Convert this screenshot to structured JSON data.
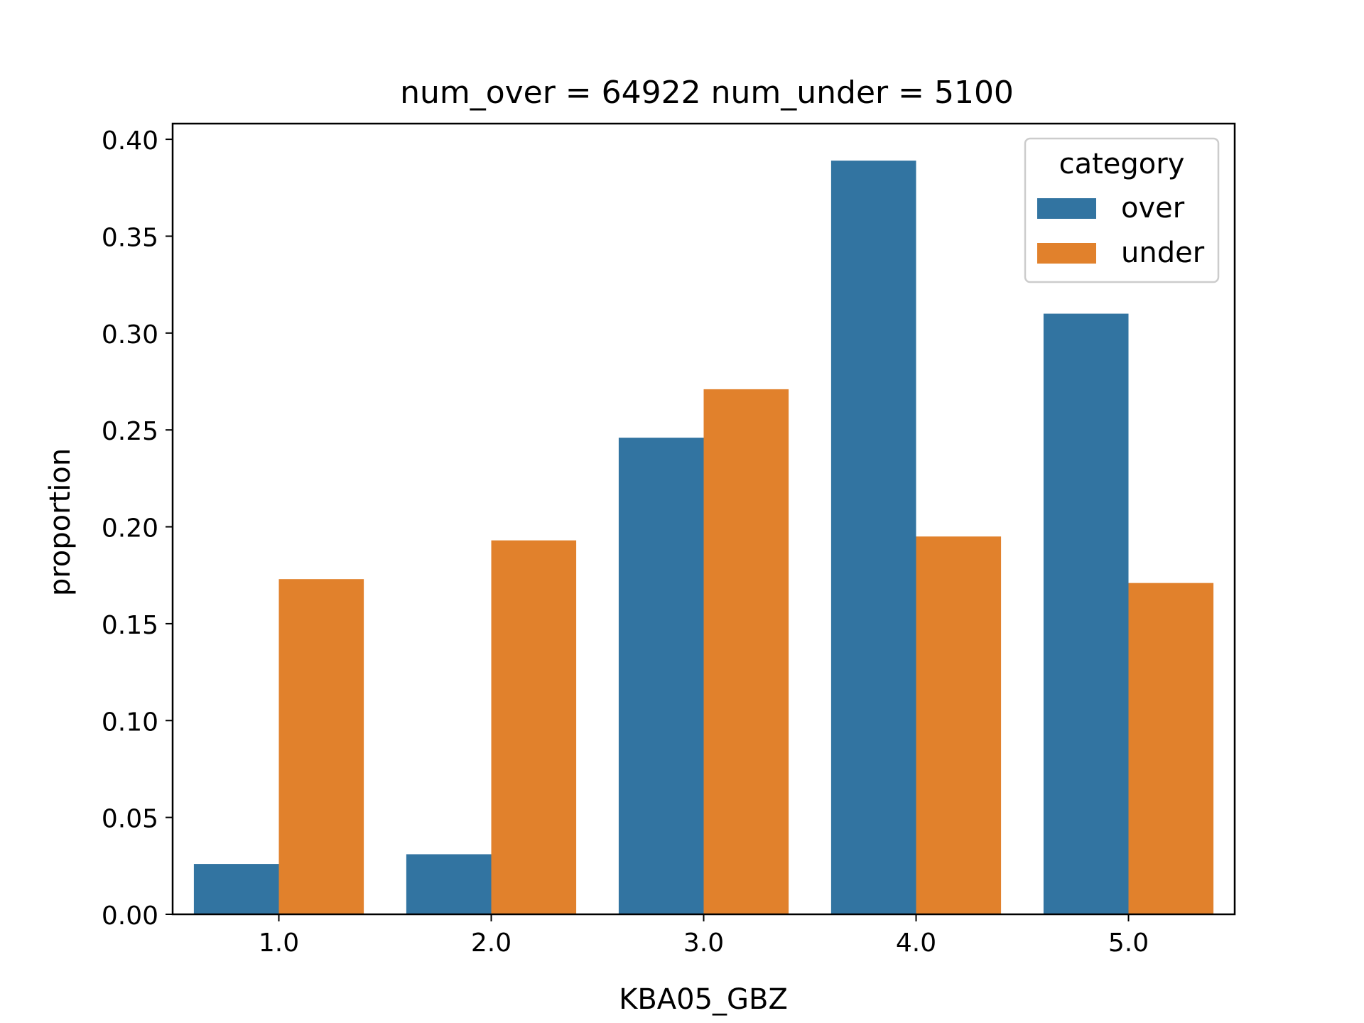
{
  "chart_data": {
    "type": "bar",
    "title": "num_over = 64922  num_under = 5100",
    "xlabel": "KBA05_GBZ",
    "ylabel": "proportion",
    "categories": [
      "1.0",
      "2.0",
      "3.0",
      "4.0",
      "5.0"
    ],
    "ylim": [
      0,
      0.4081
    ],
    "yticks": [
      "0.00",
      "0.05",
      "0.10",
      "0.15",
      "0.20",
      "0.25",
      "0.30",
      "0.35",
      "0.40"
    ],
    "grid": false,
    "legend": {
      "title": "category",
      "placement": "top-right"
    },
    "series": [
      {
        "name": "over",
        "color": "#3274a1",
        "values": [
          0.026,
          0.031,
          0.246,
          0.389,
          0.31
        ]
      },
      {
        "name": "under",
        "color": "#e1812c",
        "values": [
          0.173,
          0.193,
          0.271,
          0.195,
          0.171
        ]
      }
    ]
  }
}
